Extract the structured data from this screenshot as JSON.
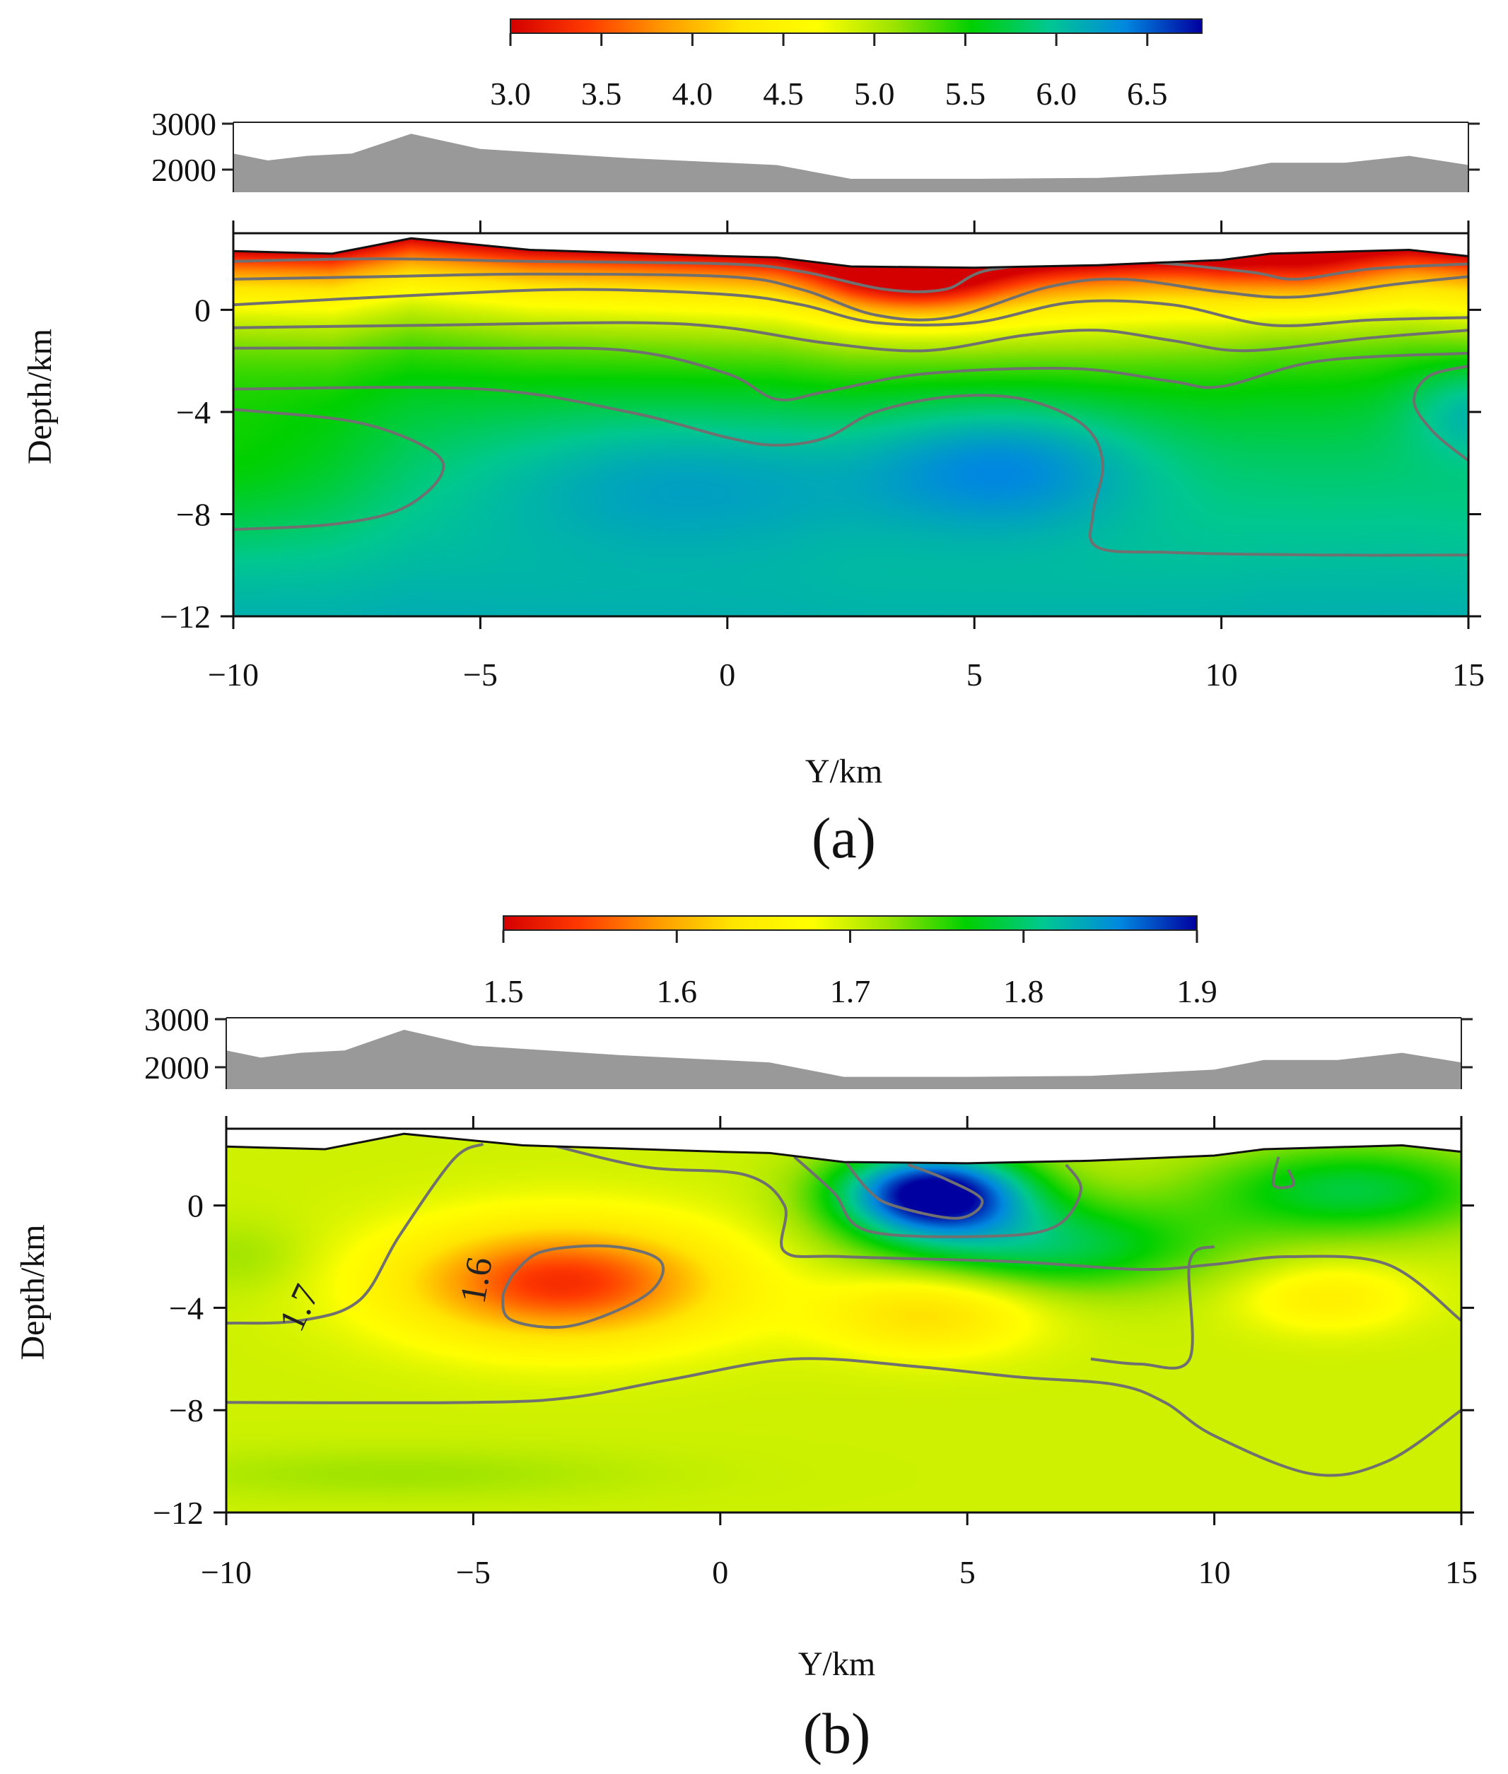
{
  "chart_data": [
    {
      "type": "heatmap",
      "panel_label": "(a)",
      "xlabel": "Y/km",
      "ylabel": "Depth/km",
      "xlim": [
        -10,
        15
      ],
      "ylim": [
        -12,
        3
      ],
      "x_ticks": [
        "−10",
        "−5",
        "0",
        "5",
        "10",
        "15"
      ],
      "y_ticks": [
        "0",
        "−4",
        "−8",
        "−12"
      ],
      "colorbar": {
        "min": 3.0,
        "max": 6.8,
        "ticks": [
          "3.0",
          "3.5",
          "4.0",
          "4.5",
          "5.0",
          "5.5",
          "6.0",
          "6.5"
        ],
        "colors": [
          "#d40000",
          "#ff3a00",
          "#ff9a00",
          "#ffe600",
          "#ffff00",
          "#9be300",
          "#00d000",
          "#00c890",
          "#0088e0",
          "#0000a0"
        ]
      },
      "topography": {
        "ticks": [
          "3000",
          "2000"
        ],
        "elevation_m": [
          [
            -10,
            2350
          ],
          [
            -9.3,
            2200
          ],
          [
            -8.5,
            2300
          ],
          [
            -7.6,
            2350
          ],
          [
            -6.4,
            2780
          ],
          [
            -5.0,
            2450
          ],
          [
            -2.0,
            2250
          ],
          [
            0,
            2150
          ],
          [
            1.0,
            2100
          ],
          [
            2.5,
            1800
          ],
          [
            5.0,
            1800
          ],
          [
            7.5,
            1820
          ],
          [
            10.0,
            1950
          ],
          [
            11.0,
            2150
          ],
          [
            12.5,
            2150
          ],
          [
            13.8,
            2300
          ],
          [
            15,
            2100
          ]
        ],
        "fill": "#999999"
      },
      "surface_km": [
        [
          -10,
          2.3
        ],
        [
          -8,
          2.2
        ],
        [
          -6.4,
          2.8
        ],
        [
          -4,
          2.35
        ],
        [
          0,
          2.1
        ],
        [
          1.0,
          2.05
        ],
        [
          2.5,
          1.7
        ],
        [
          5,
          1.65
        ],
        [
          7.5,
          1.75
        ],
        [
          10,
          1.95
        ],
        [
          11,
          2.2
        ],
        [
          13.8,
          2.35
        ],
        [
          15,
          2.1
        ]
      ],
      "anomalies": [
        {
          "x": 3.8,
          "z": 1.2,
          "sx": 1.3,
          "sz": 1.1,
          "amp": -1.0
        },
        {
          "x": 11.5,
          "z": 1.5,
          "sx": 1.2,
          "sz": 1.0,
          "amp": -0.5
        },
        {
          "x": 5.6,
          "z": -6.0,
          "sx": 2.0,
          "sz": 1.8,
          "amp": 0.55
        },
        {
          "x": -0.8,
          "z": -6.5,
          "sx": 3.0,
          "sz": 2.0,
          "amp": 0.35
        },
        {
          "x": 15.2,
          "z": -3.8,
          "sx": 1.0,
          "sz": 1.4,
          "amp": 0.45
        },
        {
          "x": -10.5,
          "z": -6.2,
          "sx": 2.5,
          "sz": 2.2,
          "amp": -0.3
        }
      ],
      "contours": [
        [
          [
            -10,
            1.9
          ],
          [
            -7,
            2.0
          ],
          [
            -4,
            1.9
          ],
          [
            0,
            1.8
          ],
          [
            1.5,
            1.5
          ],
          [
            3.2,
            0.8
          ],
          [
            4.4,
            0.8
          ],
          [
            5.4,
            1.6
          ],
          [
            8,
            1.9
          ],
          [
            10.5,
            1.5
          ],
          [
            11.5,
            1.2
          ],
          [
            13,
            1.6
          ],
          [
            15,
            1.8
          ]
        ],
        [
          [
            -10,
            1.2
          ],
          [
            -7,
            1.3
          ],
          [
            -4,
            1.4
          ],
          [
            0,
            1.3
          ],
          [
            1.5,
            0.8
          ],
          [
            3,
            -0.2
          ],
          [
            4.5,
            -0.3
          ],
          [
            6.5,
            0.9
          ],
          [
            8,
            1.2
          ],
          [
            10,
            0.7
          ],
          [
            11.5,
            0.5
          ],
          [
            13.5,
            1.0
          ],
          [
            15,
            1.3
          ]
        ],
        [
          [
            -10,
            0.2
          ],
          [
            -6,
            0.6
          ],
          [
            -3,
            0.8
          ],
          [
            0,
            0.6
          ],
          [
            1.5,
            0.2
          ],
          [
            3,
            -0.5
          ],
          [
            5,
            -0.5
          ],
          [
            7,
            0.3
          ],
          [
            9,
            0.2
          ],
          [
            11,
            -0.6
          ],
          [
            13,
            -0.4
          ],
          [
            15,
            -0.3
          ]
        ],
        [
          [
            -10,
            -0.7
          ],
          [
            -6,
            -0.6
          ],
          [
            -2,
            -0.5
          ],
          [
            0,
            -0.7
          ],
          [
            2,
            -1.3
          ],
          [
            4,
            -1.6
          ],
          [
            6,
            -1.0
          ],
          [
            7.5,
            -0.8
          ],
          [
            9,
            -1.2
          ],
          [
            10.5,
            -1.6
          ],
          [
            13,
            -1.1
          ],
          [
            15,
            -0.8
          ]
        ],
        [
          [
            -10,
            -1.5
          ],
          [
            -5,
            -1.5
          ],
          [
            -2,
            -1.6
          ],
          [
            0,
            -2.5
          ],
          [
            1,
            -3.5
          ],
          [
            2,
            -3.2
          ],
          [
            4,
            -2.5
          ],
          [
            7,
            -2.3
          ],
          [
            9,
            -2.8
          ],
          [
            10,
            -3.0
          ],
          [
            12,
            -2.0
          ],
          [
            15,
            -1.7
          ]
        ],
        [
          [
            -10,
            -3.1
          ],
          [
            -5,
            -3.1
          ],
          [
            -2,
            -4.0
          ],
          [
            0,
            -5.0
          ],
          [
            1,
            -5.3
          ],
          [
            2,
            -5.0
          ],
          [
            3,
            -4.0
          ],
          [
            4.5,
            -3.4
          ],
          [
            6,
            -3.5
          ],
          [
            7.2,
            -4.5
          ],
          [
            7.6,
            -6.0
          ],
          [
            7.4,
            -8.0
          ],
          [
            7.5,
            -9.3
          ],
          [
            9,
            -9.5
          ],
          [
            12,
            -9.6
          ],
          [
            15,
            -9.6
          ]
        ],
        [
          [
            -10,
            -3.9
          ],
          [
            -7.5,
            -4.4
          ],
          [
            -6,
            -5.5
          ],
          [
            -5.8,
            -6.5
          ],
          [
            -6.6,
            -7.8
          ],
          [
            -8,
            -8.4
          ],
          [
            -10,
            -8.6
          ]
        ],
        [
          [
            15,
            -2.2
          ],
          [
            14.2,
            -2.6
          ],
          [
            13.9,
            -3.6
          ],
          [
            14.3,
            -4.8
          ],
          [
            15,
            -5.9
          ]
        ]
      ],
      "contour_labels": []
    },
    {
      "type": "heatmap",
      "panel_label": "(b)",
      "xlabel": "Y/km",
      "ylabel": "Depth/km",
      "xlim": [
        -10,
        15
      ],
      "ylim": [
        -12,
        3
      ],
      "x_ticks": [
        "−10",
        "−5",
        "0",
        "5",
        "10",
        "15"
      ],
      "y_ticks": [
        "0",
        "−4",
        "−8",
        "−12"
      ],
      "colorbar": {
        "min": 1.5,
        "max": 1.9,
        "ticks": [
          "1.5",
          "1.6",
          "1.7",
          "1.8",
          "1.9"
        ],
        "colors": [
          "#d40000",
          "#ff3a00",
          "#ff9a00",
          "#ffe600",
          "#ffff00",
          "#9be300",
          "#00d000",
          "#00c890",
          "#0088e0",
          "#0000a0"
        ]
      },
      "topography": {
        "ticks": [
          "3000",
          "2000"
        ],
        "elevation_m": [
          [
            -10,
            2350
          ],
          [
            -9.3,
            2200
          ],
          [
            -8.5,
            2300
          ],
          [
            -7.6,
            2350
          ],
          [
            -6.4,
            2780
          ],
          [
            -5.0,
            2450
          ],
          [
            -2.0,
            2250
          ],
          [
            0,
            2150
          ],
          [
            1.0,
            2100
          ],
          [
            2.5,
            1800
          ],
          [
            5.0,
            1800
          ],
          [
            7.5,
            1820
          ],
          [
            10.0,
            1950
          ],
          [
            11.0,
            2150
          ],
          [
            12.5,
            2150
          ],
          [
            13.8,
            2300
          ],
          [
            15,
            2100
          ]
        ],
        "fill": "#999999"
      },
      "surface_km": [
        [
          -10,
          2.3
        ],
        [
          -8,
          2.2
        ],
        [
          -6.4,
          2.8
        ],
        [
          -4,
          2.35
        ],
        [
          0,
          2.1
        ],
        [
          1.0,
          2.05
        ],
        [
          2.5,
          1.7
        ],
        [
          5,
          1.65
        ],
        [
          7.5,
          1.75
        ],
        [
          10,
          1.95
        ],
        [
          11,
          2.2
        ],
        [
          13.8,
          2.35
        ],
        [
          15,
          2.1
        ]
      ],
      "anomalies": [
        {
          "x": -3.2,
          "z": -3.0,
          "sx": 2.3,
          "sz": 1.6,
          "amp": -0.165
        },
        {
          "x": 4.2,
          "z": -4.2,
          "sx": 1.5,
          "sz": 1.1,
          "amp": -0.075
        },
        {
          "x": 12.3,
          "z": -3.6,
          "sx": 1.2,
          "sz": 0.9,
          "amp": -0.05
        },
        {
          "x": 4.3,
          "z": 0.5,
          "sx": 1.4,
          "sz": 1.2,
          "amp": 0.21
        },
        {
          "x": 6.6,
          "z": -1.6,
          "sx": 2.4,
          "sz": 1.3,
          "amp": 0.09
        },
        {
          "x": 12.8,
          "z": 0.6,
          "sx": 2.2,
          "sz": 1.3,
          "amp": 0.085
        },
        {
          "x": -9.7,
          "z": -2.0,
          "sx": 1.0,
          "sz": 1.0,
          "amp": 0.02
        },
        {
          "x": -6.5,
          "z": -10.5,
          "sx": 3.5,
          "sz": 0.7,
          "amp": 0.02
        }
      ],
      "contours": [
        [
          [
            -10,
            -4.6
          ],
          [
            -8.5,
            -4.5
          ],
          [
            -7.3,
            -3.7
          ],
          [
            -6.5,
            -1.2
          ],
          [
            -5.4,
            1.8
          ],
          [
            -4.8,
            2.4
          ]
        ],
        [
          [
            -4.2,
            -2.7
          ],
          [
            -3.6,
            -1.8
          ],
          [
            -2.2,
            -1.6
          ],
          [
            -1.2,
            -2.2
          ],
          [
            -1.5,
            -3.5
          ],
          [
            -3,
            -4.7
          ],
          [
            -4.2,
            -4.5
          ],
          [
            -4.4,
            -3.6
          ],
          [
            -4.2,
            -2.7
          ]
        ],
        [
          [
            -3.5,
            2.4
          ],
          [
            -1.5,
            1.5
          ],
          [
            0.5,
            1.2
          ],
          [
            1.3,
            0.0
          ],
          [
            1.3,
            -1.8
          ],
          [
            2.5,
            -2.0
          ],
          [
            6,
            -2.2
          ],
          [
            8.5,
            -2.5
          ],
          [
            10,
            -2.3
          ],
          [
            11.5,
            -2.0
          ],
          [
            13.5,
            -2.3
          ],
          [
            15,
            -4.5
          ]
        ],
        [
          [
            2.5,
            1.8
          ],
          [
            3.0,
            0.6
          ],
          [
            3.5,
            0.0
          ],
          [
            4.8,
            -0.5
          ],
          [
            5.3,
            0.2
          ],
          [
            4.6,
            1.0
          ],
          [
            3.8,
            1.6
          ]
        ],
        [
          [
            1.5,
            1.9
          ],
          [
            2.3,
            0.5
          ],
          [
            3.0,
            -1.0
          ],
          [
            5.5,
            -1.2
          ],
          [
            6.8,
            -0.8
          ],
          [
            7.3,
            0.6
          ],
          [
            7.0,
            1.6
          ]
        ],
        [
          [
            11.3,
            1.9
          ],
          [
            11.2,
            0.8
          ],
          [
            11.6,
            0.8
          ],
          [
            11.5,
            1.4
          ]
        ],
        [
          [
            -10,
            -7.7
          ],
          [
            -5,
            -7.7
          ],
          [
            -3,
            -7.5
          ],
          [
            -1,
            -6.8
          ],
          [
            1.5,
            -6.0
          ],
          [
            4,
            -6.3
          ],
          [
            6,
            -6.7
          ],
          [
            8,
            -7.0
          ],
          [
            9,
            -7.7
          ],
          [
            10,
            -9.0
          ],
          [
            12,
            -10.5
          ],
          [
            13.5,
            -10.0
          ],
          [
            15,
            -8.0
          ]
        ],
        [
          [
            10.0,
            -1.6
          ],
          [
            9.5,
            -2.2
          ],
          [
            9.5,
            -6.0
          ],
          [
            8.5,
            -6.2
          ],
          [
            7.5,
            -6.0
          ]
        ]
      ],
      "contour_labels": [
        {
          "text": "1.7",
          "x": -8.3,
          "z": -4.2,
          "angle": -65
        },
        {
          "text": "1.6",
          "x": -4.7,
          "z": -3.0,
          "angle": -80
        }
      ]
    }
  ]
}
